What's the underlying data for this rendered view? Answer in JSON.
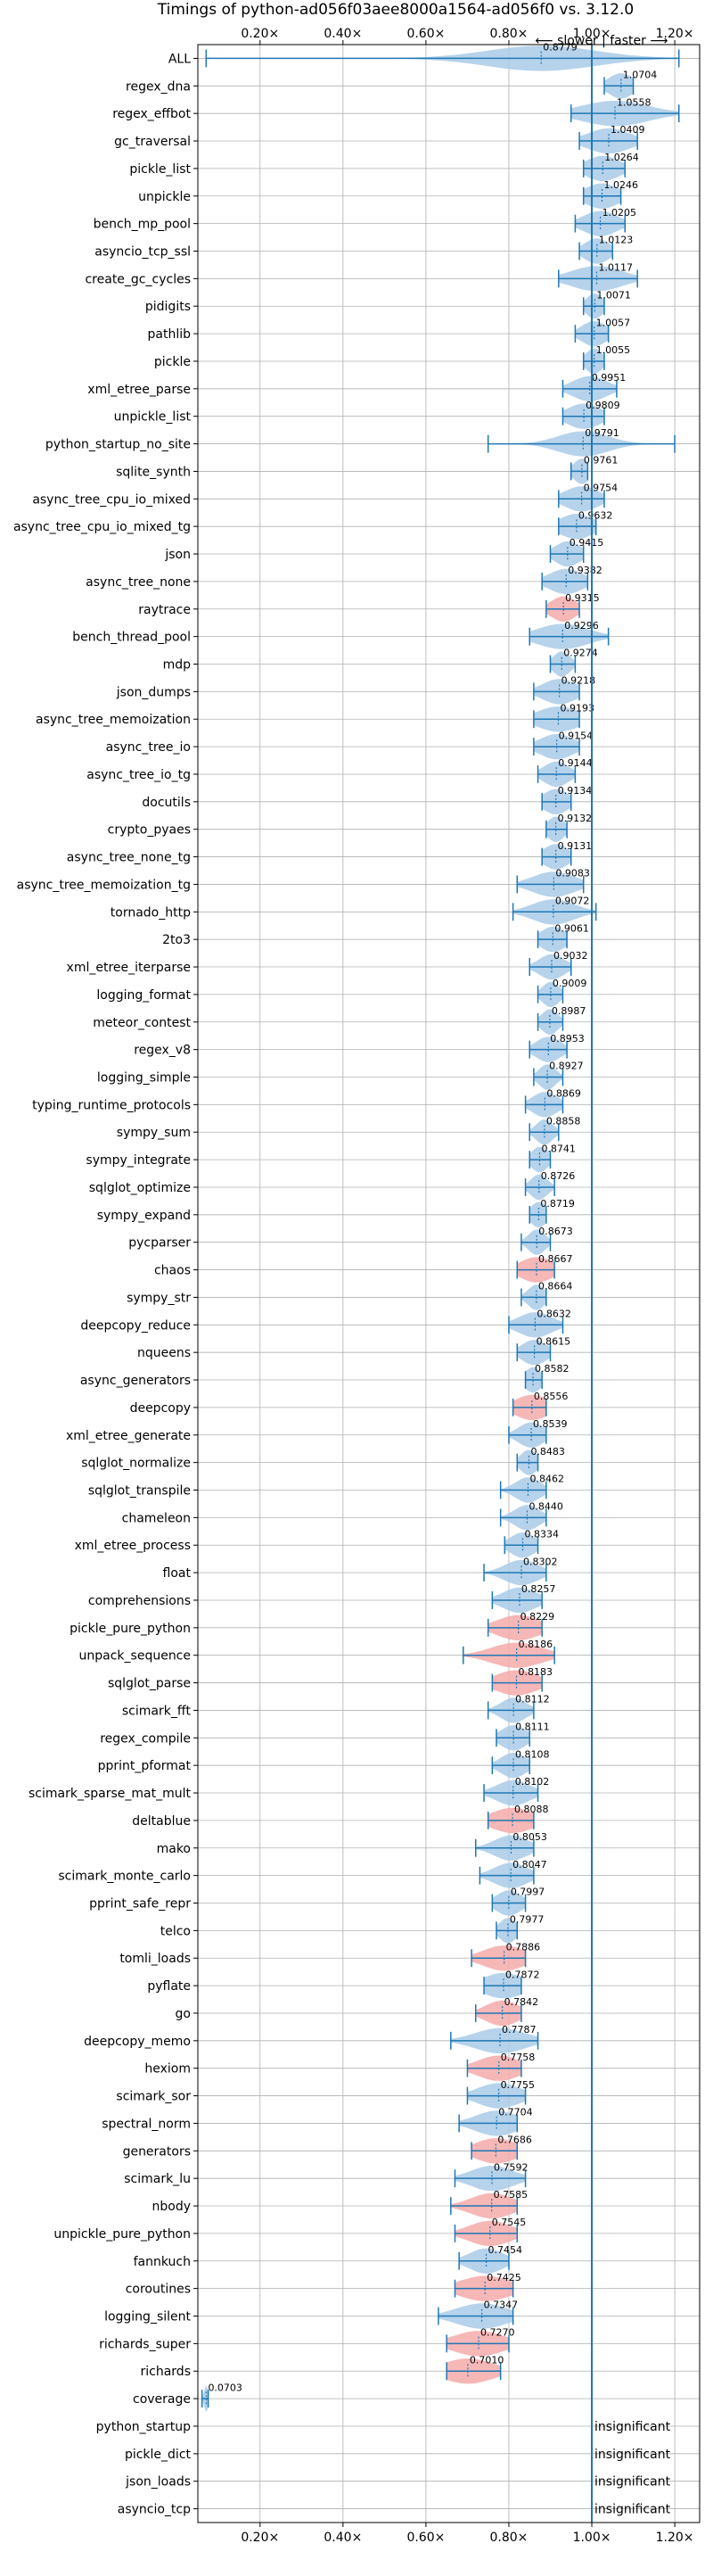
{
  "chart_data": {
    "type": "violin",
    "title": "Timings of python-ad056f03aee8000a1564-ad056f0 vs. 3.12.0",
    "direction_label": "⟵ slower | faster ⟶",
    "xlim": [
      0.05,
      1.26
    ],
    "x_ticks": [
      0.2,
      0.4,
      0.6,
      0.8,
      1.0,
      1.2
    ],
    "x_tick_labels": [
      "0.20×",
      "0.40×",
      "0.60×",
      "0.80×",
      "1.00×",
      "1.20×"
    ],
    "reference_line": 1.0,
    "grid": true,
    "colors": {
      "faster": "#a9cbe8",
      "slower": "#f4aaaa",
      "line": "#1f77b4"
    },
    "insignificant_label": "insignificant",
    "benchmarks": [
      {
        "name": "ALL",
        "value": 0.8779,
        "label": "0.8779",
        "min": 0.07,
        "max": 1.21,
        "spread": 0.13,
        "color": "faster"
      },
      {
        "name": "regex_dna",
        "value": 1.0704,
        "label": "1.0704",
        "min": 1.03,
        "max": 1.1,
        "spread": 0.03,
        "color": "faster"
      },
      {
        "name": "regex_effbot",
        "value": 1.0558,
        "label": "1.0558",
        "min": 0.95,
        "max": 1.21,
        "spread": 0.08,
        "color": "faster"
      },
      {
        "name": "gc_traversal",
        "value": 1.0409,
        "label": "1.0409",
        "min": 0.97,
        "max": 1.11,
        "spread": 0.05,
        "color": "faster"
      },
      {
        "name": "pickle_list",
        "value": 1.0264,
        "label": "1.0264",
        "min": 0.98,
        "max": 1.08,
        "spread": 0.04,
        "color": "faster"
      },
      {
        "name": "unpickle",
        "value": 1.0246,
        "label": "1.0246",
        "min": 0.98,
        "max": 1.07,
        "spread": 0.04,
        "color": "faster"
      },
      {
        "name": "bench_mp_pool",
        "value": 1.0205,
        "label": "1.0205",
        "min": 0.96,
        "max": 1.08,
        "spread": 0.04,
        "color": "faster"
      },
      {
        "name": "asyncio_tcp_ssl",
        "value": 1.0123,
        "label": "1.0123",
        "min": 0.97,
        "max": 1.05,
        "spread": 0.03,
        "color": "faster"
      },
      {
        "name": "create_gc_cycles",
        "value": 1.0117,
        "label": "1.0117",
        "min": 0.92,
        "max": 1.11,
        "spread": 0.06,
        "color": "faster"
      },
      {
        "name": "pidigits",
        "value": 1.0071,
        "label": "1.0071",
        "min": 0.98,
        "max": 1.03,
        "spread": 0.02,
        "color": "faster"
      },
      {
        "name": "pathlib",
        "value": 1.0057,
        "label": "1.0057",
        "min": 0.96,
        "max": 1.04,
        "spread": 0.03,
        "color": "faster"
      },
      {
        "name": "pickle",
        "value": 1.0055,
        "label": "1.0055",
        "min": 0.98,
        "max": 1.03,
        "spread": 0.02,
        "color": "faster"
      },
      {
        "name": "xml_etree_parse",
        "value": 0.9951,
        "label": "0.9951",
        "min": 0.93,
        "max": 1.06,
        "spread": 0.04,
        "color": "faster"
      },
      {
        "name": "unpickle_list",
        "value": 0.9809,
        "label": "0.9809",
        "min": 0.93,
        "max": 1.03,
        "spread": 0.04,
        "color": "faster"
      },
      {
        "name": "python_startup_no_site",
        "value": 0.9791,
        "label": "0.9791",
        "min": 0.75,
        "max": 1.2,
        "spread": 0.06,
        "color": "faster"
      },
      {
        "name": "sqlite_synth",
        "value": 0.9761,
        "label": "0.9761",
        "min": 0.95,
        "max": 0.99,
        "spread": 0.02,
        "color": "faster"
      },
      {
        "name": "async_tree_cpu_io_mixed",
        "value": 0.9754,
        "label": "0.9754",
        "min": 0.92,
        "max": 1.03,
        "spread": 0.04,
        "color": "faster"
      },
      {
        "name": "async_tree_cpu_io_mixed_tg",
        "value": 0.9632,
        "label": "0.9632",
        "min": 0.92,
        "max": 1.01,
        "spread": 0.04,
        "color": "faster"
      },
      {
        "name": "json",
        "value": 0.9415,
        "label": "0.9415",
        "min": 0.9,
        "max": 0.98,
        "spread": 0.03,
        "color": "faster"
      },
      {
        "name": "async_tree_none",
        "value": 0.9382,
        "label": "0.9382",
        "min": 0.88,
        "max": 0.99,
        "spread": 0.04,
        "color": "faster"
      },
      {
        "name": "raytrace",
        "value": 0.9315,
        "label": "0.9315",
        "min": 0.89,
        "max": 0.97,
        "spread": 0.03,
        "color": "slower"
      },
      {
        "name": "bench_thread_pool",
        "value": 0.9296,
        "label": "0.9296",
        "min": 0.85,
        "max": 1.04,
        "spread": 0.06,
        "color": "faster"
      },
      {
        "name": "mdp",
        "value": 0.9274,
        "label": "0.9274",
        "min": 0.9,
        "max": 0.96,
        "spread": 0.02,
        "color": "faster"
      },
      {
        "name": "json_dumps",
        "value": 0.9218,
        "label": "0.9218",
        "min": 0.86,
        "max": 0.97,
        "spread": 0.04,
        "color": "faster"
      },
      {
        "name": "async_tree_memoization",
        "value": 0.9193,
        "label": "0.9193",
        "min": 0.86,
        "max": 0.97,
        "spread": 0.05,
        "color": "faster"
      },
      {
        "name": "async_tree_io",
        "value": 0.9154,
        "label": "0.9154",
        "min": 0.86,
        "max": 0.97,
        "spread": 0.04,
        "color": "faster"
      },
      {
        "name": "async_tree_io_tg",
        "value": 0.9144,
        "label": "0.9144",
        "min": 0.87,
        "max": 0.96,
        "spread": 0.03,
        "color": "faster"
      },
      {
        "name": "docutils",
        "value": 0.9134,
        "label": "0.9134",
        "min": 0.88,
        "max": 0.95,
        "spread": 0.03,
        "color": "faster"
      },
      {
        "name": "crypto_pyaes",
        "value": 0.9132,
        "label": "0.9132",
        "min": 0.89,
        "max": 0.94,
        "spread": 0.02,
        "color": "faster"
      },
      {
        "name": "async_tree_none_tg",
        "value": 0.9131,
        "label": "0.9131",
        "min": 0.88,
        "max": 0.95,
        "spread": 0.03,
        "color": "faster"
      },
      {
        "name": "async_tree_memoization_tg",
        "value": 0.9083,
        "label": "0.9083",
        "min": 0.82,
        "max": 0.98,
        "spread": 0.05,
        "color": "faster"
      },
      {
        "name": "tornado_http",
        "value": 0.9072,
        "label": "0.9072",
        "min": 0.81,
        "max": 1.01,
        "spread": 0.05,
        "color": "faster"
      },
      {
        "name": "2to3",
        "value": 0.9061,
        "label": "0.9061",
        "min": 0.87,
        "max": 0.94,
        "spread": 0.03,
        "color": "faster"
      },
      {
        "name": "xml_etree_iterparse",
        "value": 0.9032,
        "label": "0.9032",
        "min": 0.85,
        "max": 0.95,
        "spread": 0.03,
        "color": "faster"
      },
      {
        "name": "logging_format",
        "value": 0.9009,
        "label": "0.9009",
        "min": 0.87,
        "max": 0.93,
        "spread": 0.02,
        "color": "faster"
      },
      {
        "name": "meteor_contest",
        "value": 0.8987,
        "label": "0.8987",
        "min": 0.87,
        "max": 0.93,
        "spread": 0.02,
        "color": "faster"
      },
      {
        "name": "regex_v8",
        "value": 0.8953,
        "label": "0.8953",
        "min": 0.85,
        "max": 0.94,
        "spread": 0.03,
        "color": "faster"
      },
      {
        "name": "logging_simple",
        "value": 0.8927,
        "label": "0.8927",
        "min": 0.86,
        "max": 0.93,
        "spread": 0.02,
        "color": "faster"
      },
      {
        "name": "typing_runtime_protocols",
        "value": 0.8869,
        "label": "0.8869",
        "min": 0.84,
        "max": 0.93,
        "spread": 0.03,
        "color": "faster"
      },
      {
        "name": "sympy_sum",
        "value": 0.8858,
        "label": "0.8858",
        "min": 0.85,
        "max": 0.92,
        "spread": 0.02,
        "color": "faster"
      },
      {
        "name": "sympy_integrate",
        "value": 0.8741,
        "label": "0.8741",
        "min": 0.85,
        "max": 0.9,
        "spread": 0.02,
        "color": "faster"
      },
      {
        "name": "sqlglot_optimize",
        "value": 0.8726,
        "label": "0.8726",
        "min": 0.84,
        "max": 0.91,
        "spread": 0.02,
        "color": "faster"
      },
      {
        "name": "sympy_expand",
        "value": 0.8719,
        "label": "0.8719",
        "min": 0.85,
        "max": 0.89,
        "spread": 0.02,
        "color": "faster"
      },
      {
        "name": "pycparser",
        "value": 0.8673,
        "label": "0.8673",
        "min": 0.83,
        "max": 0.9,
        "spread": 0.02,
        "color": "faster"
      },
      {
        "name": "chaos",
        "value": 0.8667,
        "label": "0.8667",
        "min": 0.82,
        "max": 0.91,
        "spread": 0.04,
        "color": "slower"
      },
      {
        "name": "sympy_str",
        "value": 0.8664,
        "label": "0.8664",
        "min": 0.83,
        "max": 0.89,
        "spread": 0.02,
        "color": "faster"
      },
      {
        "name": "deepcopy_reduce",
        "value": 0.8632,
        "label": "0.8632",
        "min": 0.8,
        "max": 0.93,
        "spread": 0.04,
        "color": "faster"
      },
      {
        "name": "nqueens",
        "value": 0.8615,
        "label": "0.8615",
        "min": 0.82,
        "max": 0.9,
        "spread": 0.03,
        "color": "faster"
      },
      {
        "name": "async_generators",
        "value": 0.8582,
        "label": "0.8582",
        "min": 0.84,
        "max": 0.88,
        "spread": 0.02,
        "color": "faster"
      },
      {
        "name": "deepcopy",
        "value": 0.8556,
        "label": "0.8556",
        "min": 0.81,
        "max": 0.89,
        "spread": 0.04,
        "color": "slower"
      },
      {
        "name": "xml_etree_generate",
        "value": 0.8539,
        "label": "0.8539",
        "min": 0.8,
        "max": 0.89,
        "spread": 0.03,
        "color": "faster"
      },
      {
        "name": "sqlglot_normalize",
        "value": 0.8483,
        "label": "0.8483",
        "min": 0.82,
        "max": 0.87,
        "spread": 0.02,
        "color": "faster"
      },
      {
        "name": "sqlglot_transpile",
        "value": 0.8462,
        "label": "0.8462",
        "min": 0.78,
        "max": 0.89,
        "spread": 0.03,
        "color": "faster"
      },
      {
        "name": "chameleon",
        "value": 0.844,
        "label": "0.8440",
        "min": 0.78,
        "max": 0.89,
        "spread": 0.03,
        "color": "faster"
      },
      {
        "name": "xml_etree_process",
        "value": 0.8334,
        "label": "0.8334",
        "min": 0.79,
        "max": 0.87,
        "spread": 0.03,
        "color": "faster"
      },
      {
        "name": "float",
        "value": 0.8302,
        "label": "0.8302",
        "min": 0.74,
        "max": 0.89,
        "spread": 0.04,
        "color": "faster"
      },
      {
        "name": "comprehensions",
        "value": 0.8257,
        "label": "0.8257",
        "min": 0.76,
        "max": 0.88,
        "spread": 0.04,
        "color": "faster"
      },
      {
        "name": "pickle_pure_python",
        "value": 0.8229,
        "label": "0.8229",
        "min": 0.75,
        "max": 0.88,
        "spread": 0.05,
        "color": "slower"
      },
      {
        "name": "unpack_sequence",
        "value": 0.8186,
        "label": "0.8186",
        "min": 0.69,
        "max": 0.91,
        "spread": 0.06,
        "color": "slower"
      },
      {
        "name": "sqlglot_parse",
        "value": 0.8183,
        "label": "0.8183",
        "min": 0.76,
        "max": 0.88,
        "spread": 0.05,
        "color": "slower"
      },
      {
        "name": "scimark_fft",
        "value": 0.8112,
        "label": "0.8112",
        "min": 0.75,
        "max": 0.86,
        "spread": 0.03,
        "color": "faster"
      },
      {
        "name": "regex_compile",
        "value": 0.8111,
        "label": "0.8111",
        "min": 0.77,
        "max": 0.85,
        "spread": 0.03,
        "color": "faster"
      },
      {
        "name": "pprint_pformat",
        "value": 0.8108,
        "label": "0.8108",
        "min": 0.76,
        "max": 0.85,
        "spread": 0.03,
        "color": "faster"
      },
      {
        "name": "scimark_sparse_mat_mult",
        "value": 0.8102,
        "label": "0.8102",
        "min": 0.74,
        "max": 0.87,
        "spread": 0.04,
        "color": "faster"
      },
      {
        "name": "deltablue",
        "value": 0.8088,
        "label": "0.8088",
        "min": 0.75,
        "max": 0.86,
        "spread": 0.05,
        "color": "slower"
      },
      {
        "name": "mako",
        "value": 0.8053,
        "label": "0.8053",
        "min": 0.72,
        "max": 0.86,
        "spread": 0.04,
        "color": "faster"
      },
      {
        "name": "scimark_monte_carlo",
        "value": 0.8047,
        "label": "0.8047",
        "min": 0.73,
        "max": 0.86,
        "spread": 0.04,
        "color": "faster"
      },
      {
        "name": "pprint_safe_repr",
        "value": 0.7997,
        "label": "0.7997",
        "min": 0.76,
        "max": 0.84,
        "spread": 0.03,
        "color": "faster"
      },
      {
        "name": "telco",
        "value": 0.7977,
        "label": "0.7977",
        "min": 0.77,
        "max": 0.82,
        "spread": 0.02,
        "color": "faster"
      },
      {
        "name": "tomli_loads",
        "value": 0.7886,
        "label": "0.7886",
        "min": 0.71,
        "max": 0.84,
        "spread": 0.05,
        "color": "slower"
      },
      {
        "name": "pyflate",
        "value": 0.7872,
        "label": "0.7872",
        "min": 0.74,
        "max": 0.83,
        "spread": 0.05,
        "color": "faster"
      },
      {
        "name": "go",
        "value": 0.7842,
        "label": "0.7842",
        "min": 0.72,
        "max": 0.83,
        "spread": 0.04,
        "color": "slower"
      },
      {
        "name": "deepcopy_memo",
        "value": 0.7787,
        "label": "0.7787",
        "min": 0.66,
        "max": 0.87,
        "spread": 0.06,
        "color": "faster"
      },
      {
        "name": "hexiom",
        "value": 0.7758,
        "label": "0.7758",
        "min": 0.7,
        "max": 0.83,
        "spread": 0.05,
        "color": "slower"
      },
      {
        "name": "scimark_sor",
        "value": 0.7755,
        "label": "0.7755",
        "min": 0.7,
        "max": 0.84,
        "spread": 0.05,
        "color": "faster"
      },
      {
        "name": "spectral_norm",
        "value": 0.7704,
        "label": "0.7704",
        "min": 0.68,
        "max": 0.82,
        "spread": 0.05,
        "color": "faster"
      },
      {
        "name": "generators",
        "value": 0.7686,
        "label": "0.7686",
        "min": 0.71,
        "max": 0.82,
        "spread": 0.05,
        "color": "slower"
      },
      {
        "name": "scimark_lu",
        "value": 0.7592,
        "label": "0.7592",
        "min": 0.67,
        "max": 0.84,
        "spread": 0.05,
        "color": "faster"
      },
      {
        "name": "nbody",
        "value": 0.7585,
        "label": "0.7585",
        "min": 0.66,
        "max": 0.82,
        "spread": 0.05,
        "color": "slower"
      },
      {
        "name": "unpickle_pure_python",
        "value": 0.7545,
        "label": "0.7545",
        "min": 0.67,
        "max": 0.82,
        "spread": 0.05,
        "color": "slower"
      },
      {
        "name": "fannkuch",
        "value": 0.7454,
        "label": "0.7454",
        "min": 0.68,
        "max": 0.8,
        "spread": 0.04,
        "color": "faster"
      },
      {
        "name": "coroutines",
        "value": 0.7425,
        "label": "0.7425",
        "min": 0.67,
        "max": 0.81,
        "spread": 0.06,
        "color": "slower"
      },
      {
        "name": "logging_silent",
        "value": 0.7347,
        "label": "0.7347",
        "min": 0.63,
        "max": 0.81,
        "spread": 0.06,
        "color": "faster"
      },
      {
        "name": "richards_super",
        "value": 0.727,
        "label": "0.7270",
        "min": 0.65,
        "max": 0.8,
        "spread": 0.06,
        "color": "slower"
      },
      {
        "name": "richards",
        "value": 0.701,
        "label": "0.7010",
        "min": 0.65,
        "max": 0.78,
        "spread": 0.06,
        "color": "slower"
      },
      {
        "name": "coverage",
        "value": 0.0703,
        "label": "0.0703",
        "min": 0.06,
        "max": 0.075,
        "spread": 0.005,
        "color": "faster"
      },
      {
        "name": "python_startup",
        "value": null,
        "label": "",
        "insignificant": true
      },
      {
        "name": "pickle_dict",
        "value": null,
        "label": "",
        "insignificant": true
      },
      {
        "name": "json_loads",
        "value": null,
        "label": "",
        "insignificant": true
      },
      {
        "name": "asyncio_tcp",
        "value": null,
        "label": "",
        "insignificant": true
      }
    ]
  }
}
